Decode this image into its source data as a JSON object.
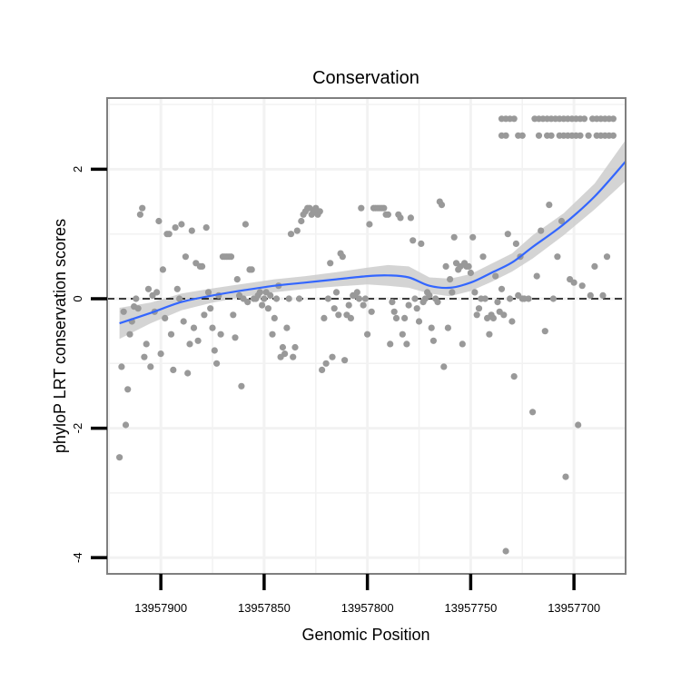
{
  "chart_data": {
    "type": "scatter",
    "title": "Conservation",
    "xlabel": "Genomic Position",
    "ylabel": "phyloP LRT conservation scores",
    "x_reversed": true,
    "xlim": [
      13957675,
      13957926
    ],
    "ylim": [
      -4.25,
      3.1
    ],
    "xticks": [
      13957700,
      13957750,
      13957800,
      13957850,
      13957900
    ],
    "xtick_labels": [
      "13957700",
      "13957750",
      "13957800",
      "13957850",
      "13957900"
    ],
    "yticks": [
      -4,
      -2,
      0,
      2
    ],
    "ytick_labels": [
      "-4",
      "-2",
      "0",
      "2"
    ],
    "reference_line": {
      "y": 0,
      "style": "dashed"
    },
    "colors": {
      "points": "#999999",
      "smooth": "#3366ff",
      "ribbon": "#cccccc",
      "frame": "#7f7f7f",
      "grid": "#f2f2f2"
    },
    "grid": true,
    "legend": "none",
    "smooth": {
      "x": [
        13957920,
        13957905,
        13957890,
        13957875,
        13957860,
        13957845,
        13957830,
        13957815,
        13957800,
        13957790,
        13957780,
        13957770,
        13957760,
        13957750,
        13957740,
        13957730,
        13957720,
        13957705,
        13957690,
        13957675
      ],
      "y": [
        -0.38,
        -0.22,
        -0.05,
        0.05,
        0.13,
        0.2,
        0.25,
        0.3,
        0.35,
        0.36,
        0.33,
        0.2,
        0.17,
        0.25,
        0.4,
        0.56,
        0.8,
        1.15,
        1.58,
        2.12
      ],
      "lower": [
        -0.62,
        -0.38,
        -0.18,
        -0.06,
        0.03,
        0.1,
        0.15,
        0.19,
        0.22,
        0.2,
        0.17,
        0.08,
        0.04,
        0.12,
        0.26,
        0.42,
        0.62,
        0.98,
        1.38,
        1.82
      ],
      "upper": [
        -0.14,
        -0.06,
        0.08,
        0.16,
        0.23,
        0.3,
        0.35,
        0.41,
        0.48,
        0.52,
        0.5,
        0.33,
        0.31,
        0.38,
        0.54,
        0.7,
        0.98,
        1.32,
        1.78,
        2.45
      ]
    },
    "points": [
      {
        "x": 13957920,
        "y": -2.45
      },
      {
        "x": 13957919,
        "y": -1.05
      },
      {
        "x": 13957918,
        "y": -0.2
      },
      {
        "x": 13957917,
        "y": -1.95
      },
      {
        "x": 13957916,
        "y": -1.4
      },
      {
        "x": 13957915,
        "y": -0.55
      },
      {
        "x": 13957914,
        "y": -0.35
      },
      {
        "x": 13957913,
        "y": -0.12
      },
      {
        "x": 13957912,
        "y": 0.0
      },
      {
        "x": 13957911,
        "y": -0.15
      },
      {
        "x": 13957910,
        "y": 1.3
      },
      {
        "x": 13957909,
        "y": 1.4
      },
      {
        "x": 13957908,
        "y": -0.9
      },
      {
        "x": 13957907,
        "y": -0.7
      },
      {
        "x": 13957906,
        "y": 0.15
      },
      {
        "x": 13957905,
        "y": -1.05
      },
      {
        "x": 13957904,
        "y": 0.05
      },
      {
        "x": 13957903,
        "y": -0.2
      },
      {
        "x": 13957902,
        "y": 0.1
      },
      {
        "x": 13957901,
        "y": 1.2
      },
      {
        "x": 13957900,
        "y": -0.85
      },
      {
        "x": 13957899,
        "y": 0.45
      },
      {
        "x": 13957898,
        "y": -0.3
      },
      {
        "x": 13957897,
        "y": 1.0
      },
      {
        "x": 13957896,
        "y": 1.0
      },
      {
        "x": 13957895,
        "y": -0.55
      },
      {
        "x": 13957894,
        "y": -1.1
      },
      {
        "x": 13957893,
        "y": 1.1
      },
      {
        "x": 13957892,
        "y": 0.15
      },
      {
        "x": 13957891,
        "y": 0.0
      },
      {
        "x": 13957890,
        "y": 1.15
      },
      {
        "x": 13957889,
        "y": -0.35
      },
      {
        "x": 13957888,
        "y": 0.65
      },
      {
        "x": 13957887,
        "y": -1.15
      },
      {
        "x": 13957886,
        "y": -0.7
      },
      {
        "x": 13957885,
        "y": 1.05
      },
      {
        "x": 13957884,
        "y": -0.45
      },
      {
        "x": 13957883,
        "y": 0.55
      },
      {
        "x": 13957882,
        "y": -0.65
      },
      {
        "x": 13957881,
        "y": 0.5
      },
      {
        "x": 13957880,
        "y": 0.5
      },
      {
        "x": 13957879,
        "y": -0.25
      },
      {
        "x": 13957878,
        "y": 1.1
      },
      {
        "x": 13957877,
        "y": 0.1
      },
      {
        "x": 13957876,
        "y": -0.15
      },
      {
        "x": 13957875,
        "y": -0.45
      },
      {
        "x": 13957874,
        "y": -0.8
      },
      {
        "x": 13957873,
        "y": -1.0
      },
      {
        "x": 13957872,
        "y": 0.05
      },
      {
        "x": 13957871,
        "y": -0.55
      },
      {
        "x": 13957870,
        "y": 0.65
      },
      {
        "x": 13957869,
        "y": 0.65
      },
      {
        "x": 13957868,
        "y": 0.65
      },
      {
        "x": 13957867,
        "y": 0.65
      },
      {
        "x": 13957866,
        "y": 0.65
      },
      {
        "x": 13957865,
        "y": -0.25
      },
      {
        "x": 13957864,
        "y": -0.6
      },
      {
        "x": 13957863,
        "y": 0.3
      },
      {
        "x": 13957862,
        "y": 0.05
      },
      {
        "x": 13957861,
        "y": -1.35
      },
      {
        "x": 13957860,
        "y": 0.0
      },
      {
        "x": 13957859,
        "y": 1.15
      },
      {
        "x": 13957858,
        "y": -0.05
      },
      {
        "x": 13957857,
        "y": 0.45
      },
      {
        "x": 13957856,
        "y": 0.45
      },
      {
        "x": 13957855,
        "y": 0.0
      },
      {
        "x": 13957854,
        "y": 0.0
      },
      {
        "x": 13957853,
        "y": 0.05
      },
      {
        "x": 13957852,
        "y": 0.1
      },
      {
        "x": 13957851,
        "y": -0.1
      },
      {
        "x": 13957850,
        "y": 0.0
      },
      {
        "x": 13957849,
        "y": 0.1
      },
      {
        "x": 13957848,
        "y": -0.15
      },
      {
        "x": 13957847,
        "y": 0.05
      },
      {
        "x": 13957846,
        "y": -0.55
      },
      {
        "x": 13957845,
        "y": -0.3
      },
      {
        "x": 13957844,
        "y": 0.0
      },
      {
        "x": 13957843,
        "y": 0.2
      },
      {
        "x": 13957842,
        "y": -0.9
      },
      {
        "x": 13957841,
        "y": -0.75
      },
      {
        "x": 13957840,
        "y": -0.85
      },
      {
        "x": 13957839,
        "y": -0.45
      },
      {
        "x": 13957838,
        "y": 0.0
      },
      {
        "x": 13957837,
        "y": 1.0
      },
      {
        "x": 13957836,
        "y": -0.9
      },
      {
        "x": 13957835,
        "y": -0.75
      },
      {
        "x": 13957834,
        "y": 1.05
      },
      {
        "x": 13957833,
        "y": 0.0
      },
      {
        "x": 13957832,
        "y": 1.2
      },
      {
        "x": 13957831,
        "y": 1.3
      },
      {
        "x": 13957830,
        "y": 1.35
      },
      {
        "x": 13957829,
        "y": 1.4
      },
      {
        "x": 13957828,
        "y": 1.4
      },
      {
        "x": 13957827,
        "y": 1.3
      },
      {
        "x": 13957826,
        "y": 1.35
      },
      {
        "x": 13957825,
        "y": 1.4
      },
      {
        "x": 13957824,
        "y": 1.3
      },
      {
        "x": 13957823,
        "y": 1.35
      },
      {
        "x": 13957822,
        "y": -1.1
      },
      {
        "x": 13957821,
        "y": -0.3
      },
      {
        "x": 13957820,
        "y": -1.0
      },
      {
        "x": 13957819,
        "y": 0.0
      },
      {
        "x": 13957818,
        "y": 0.55
      },
      {
        "x": 13957817,
        "y": -0.9
      },
      {
        "x": 13957816,
        "y": -0.15
      },
      {
        "x": 13957815,
        "y": 0.1
      },
      {
        "x": 13957814,
        "y": -0.25
      },
      {
        "x": 13957813,
        "y": 0.7
      },
      {
        "x": 13957812,
        "y": 0.65
      },
      {
        "x": 13957811,
        "y": -0.95
      },
      {
        "x": 13957810,
        "y": -0.25
      },
      {
        "x": 13957809,
        "y": -0.1
      },
      {
        "x": 13957808,
        "y": -0.3
      },
      {
        "x": 13957807,
        "y": 0.05
      },
      {
        "x": 13957806,
        "y": 0.05
      },
      {
        "x": 13957805,
        "y": 0.1
      },
      {
        "x": 13957804,
        "y": 0.0
      },
      {
        "x": 13957803,
        "y": 1.4
      },
      {
        "x": 13957802,
        "y": -0.1
      },
      {
        "x": 13957801,
        "y": 0.0
      },
      {
        "x": 13957800,
        "y": -0.55
      },
      {
        "x": 13957799,
        "y": 1.15
      },
      {
        "x": 13957798,
        "y": -0.2
      },
      {
        "x": 13957797,
        "y": 1.4
      },
      {
        "x": 13957796,
        "y": 1.4
      },
      {
        "x": 13957795,
        "y": 1.4
      },
      {
        "x": 13957794,
        "y": 1.4
      },
      {
        "x": 13957793,
        "y": 1.4
      },
      {
        "x": 13957792,
        "y": 1.4
      },
      {
        "x": 13957791,
        "y": 1.3
      },
      {
        "x": 13957790,
        "y": 1.3
      },
      {
        "x": 13957789,
        "y": -0.7
      },
      {
        "x": 13957788,
        "y": -0.05
      },
      {
        "x": 13957787,
        "y": -0.2
      },
      {
        "x": 13957786,
        "y": -0.3
      },
      {
        "x": 13957785,
        "y": 1.3
      },
      {
        "x": 13957784,
        "y": 1.25
      },
      {
        "x": 13957783,
        "y": -0.55
      },
      {
        "x": 13957782,
        "y": -0.3
      },
      {
        "x": 13957781,
        "y": -0.7
      },
      {
        "x": 13957780,
        "y": -0.1
      },
      {
        "x": 13957779,
        "y": 1.25
      },
      {
        "x": 13957778,
        "y": 0.9
      },
      {
        "x": 13957777,
        "y": 0.0
      },
      {
        "x": 13957776,
        "y": -0.15
      },
      {
        "x": 13957775,
        "y": -0.35
      },
      {
        "x": 13957774,
        "y": 0.85
      },
      {
        "x": 13957773,
        "y": -0.05
      },
      {
        "x": 13957772,
        "y": 0.0
      },
      {
        "x": 13957771,
        "y": 0.1
      },
      {
        "x": 13957770,
        "y": 0.05
      },
      {
        "x": 13957769,
        "y": -0.45
      },
      {
        "x": 13957768,
        "y": -0.65
      },
      {
        "x": 13957767,
        "y": 0.0
      },
      {
        "x": 13957766,
        "y": -0.05
      },
      {
        "x": 13957765,
        "y": 1.5
      },
      {
        "x": 13957764,
        "y": 1.45
      },
      {
        "x": 13957763,
        "y": -1.05
      },
      {
        "x": 13957762,
        "y": 0.5
      },
      {
        "x": 13957761,
        "y": -0.45
      },
      {
        "x": 13957760,
        "y": 0.3
      },
      {
        "x": 13957759,
        "y": 0.1
      },
      {
        "x": 13957758,
        "y": 0.95
      },
      {
        "x": 13957757,
        "y": 0.55
      },
      {
        "x": 13957756,
        "y": 0.45
      },
      {
        "x": 13957755,
        "y": 0.5
      },
      {
        "x": 13957754,
        "y": -0.7
      },
      {
        "x": 13957753,
        "y": 0.55
      },
      {
        "x": 13957752,
        "y": 0.5
      },
      {
        "x": 13957751,
        "y": 0.5
      },
      {
        "x": 13957750,
        "y": 0.4
      },
      {
        "x": 13957749,
        "y": 0.95
      },
      {
        "x": 13957748,
        "y": 0.1
      },
      {
        "x": 13957747,
        "y": -0.25
      },
      {
        "x": 13957746,
        "y": -0.15
      },
      {
        "x": 13957745,
        "y": 0.0
      },
      {
        "x": 13957744,
        "y": 0.65
      },
      {
        "x": 13957743,
        "y": 0.0
      },
      {
        "x": 13957742,
        "y": -0.3
      },
      {
        "x": 13957741,
        "y": -0.55
      },
      {
        "x": 13957740,
        "y": -0.25
      },
      {
        "x": 13957739,
        "y": -0.3
      },
      {
        "x": 13957738,
        "y": 0.35
      },
      {
        "x": 13957737,
        "y": -0.05
      },
      {
        "x": 13957736,
        "y": -0.2
      },
      {
        "x": 13957735,
        "y": 0.15
      },
      {
        "x": 13957734,
        "y": -0.25
      },
      {
        "x": 13957733,
        "y": -3.9
      },
      {
        "x": 13957732,
        "y": 1.0
      },
      {
        "x": 13957731,
        "y": 0.0
      },
      {
        "x": 13957730,
        "y": -0.35
      },
      {
        "x": 13957729,
        "y": -1.2
      },
      {
        "x": 13957728,
        "y": 0.85
      },
      {
        "x": 13957727,
        "y": 0.05
      },
      {
        "x": 13957726,
        "y": 0.65
      },
      {
        "x": 13957725,
        "y": 0.0
      },
      {
        "x": 13957724,
        "y": 0.0
      },
      {
        "x": 13957722,
        "y": 0.0
      },
      {
        "x": 13957720,
        "y": -1.75
      },
      {
        "x": 13957718,
        "y": 0.35
      },
      {
        "x": 13957716,
        "y": 1.05
      },
      {
        "x": 13957714,
        "y": -0.5
      },
      {
        "x": 13957712,
        "y": 1.45
      },
      {
        "x": 13957710,
        "y": 0.0
      },
      {
        "x": 13957708,
        "y": 0.65
      },
      {
        "x": 13957706,
        "y": 1.2
      },
      {
        "x": 13957704,
        "y": -2.75
      },
      {
        "x": 13957702,
        "y": 0.3
      },
      {
        "x": 13957700,
        "y": 0.25
      },
      {
        "x": 13957698,
        "y": -1.95
      },
      {
        "x": 13957696,
        "y": 0.2
      },
      {
        "x": 13957692,
        "y": 0.05
      },
      {
        "x": 13957690,
        "y": 0.5
      },
      {
        "x": 13957686,
        "y": 0.05
      },
      {
        "x": 13957684,
        "y": 0.65
      },
      {
        "x": 13957735,
        "y": 2.78
      },
      {
        "x": 13957733,
        "y": 2.78
      },
      {
        "x": 13957731,
        "y": 2.78
      },
      {
        "x": 13957729,
        "y": 2.78
      },
      {
        "x": 13957719,
        "y": 2.78
      },
      {
        "x": 13957717,
        "y": 2.78
      },
      {
        "x": 13957715,
        "y": 2.78
      },
      {
        "x": 13957713,
        "y": 2.78
      },
      {
        "x": 13957711,
        "y": 2.78
      },
      {
        "x": 13957709,
        "y": 2.78
      },
      {
        "x": 13957707,
        "y": 2.78
      },
      {
        "x": 13957705,
        "y": 2.78
      },
      {
        "x": 13957703,
        "y": 2.78
      },
      {
        "x": 13957701,
        "y": 2.78
      },
      {
        "x": 13957699,
        "y": 2.78
      },
      {
        "x": 13957697,
        "y": 2.78
      },
      {
        "x": 13957695,
        "y": 2.78
      },
      {
        "x": 13957691,
        "y": 2.78
      },
      {
        "x": 13957689,
        "y": 2.78
      },
      {
        "x": 13957687,
        "y": 2.78
      },
      {
        "x": 13957685,
        "y": 2.78
      },
      {
        "x": 13957683,
        "y": 2.78
      },
      {
        "x": 13957681,
        "y": 2.78
      },
      {
        "x": 13957735,
        "y": 2.52
      },
      {
        "x": 13957733,
        "y": 2.52
      },
      {
        "x": 13957727,
        "y": 2.52
      },
      {
        "x": 13957725,
        "y": 2.52
      },
      {
        "x": 13957717,
        "y": 2.52
      },
      {
        "x": 13957713,
        "y": 2.52
      },
      {
        "x": 13957711,
        "y": 2.52
      },
      {
        "x": 13957707,
        "y": 2.52
      },
      {
        "x": 13957705,
        "y": 2.52
      },
      {
        "x": 13957703,
        "y": 2.52
      },
      {
        "x": 13957701,
        "y": 2.52
      },
      {
        "x": 13957699,
        "y": 2.52
      },
      {
        "x": 13957697,
        "y": 2.52
      },
      {
        "x": 13957693,
        "y": 2.52
      },
      {
        "x": 13957689,
        "y": 2.52
      },
      {
        "x": 13957687,
        "y": 2.52
      },
      {
        "x": 13957685,
        "y": 2.52
      },
      {
        "x": 13957683,
        "y": 2.52
      },
      {
        "x": 13957681,
        "y": 2.52
      }
    ]
  }
}
